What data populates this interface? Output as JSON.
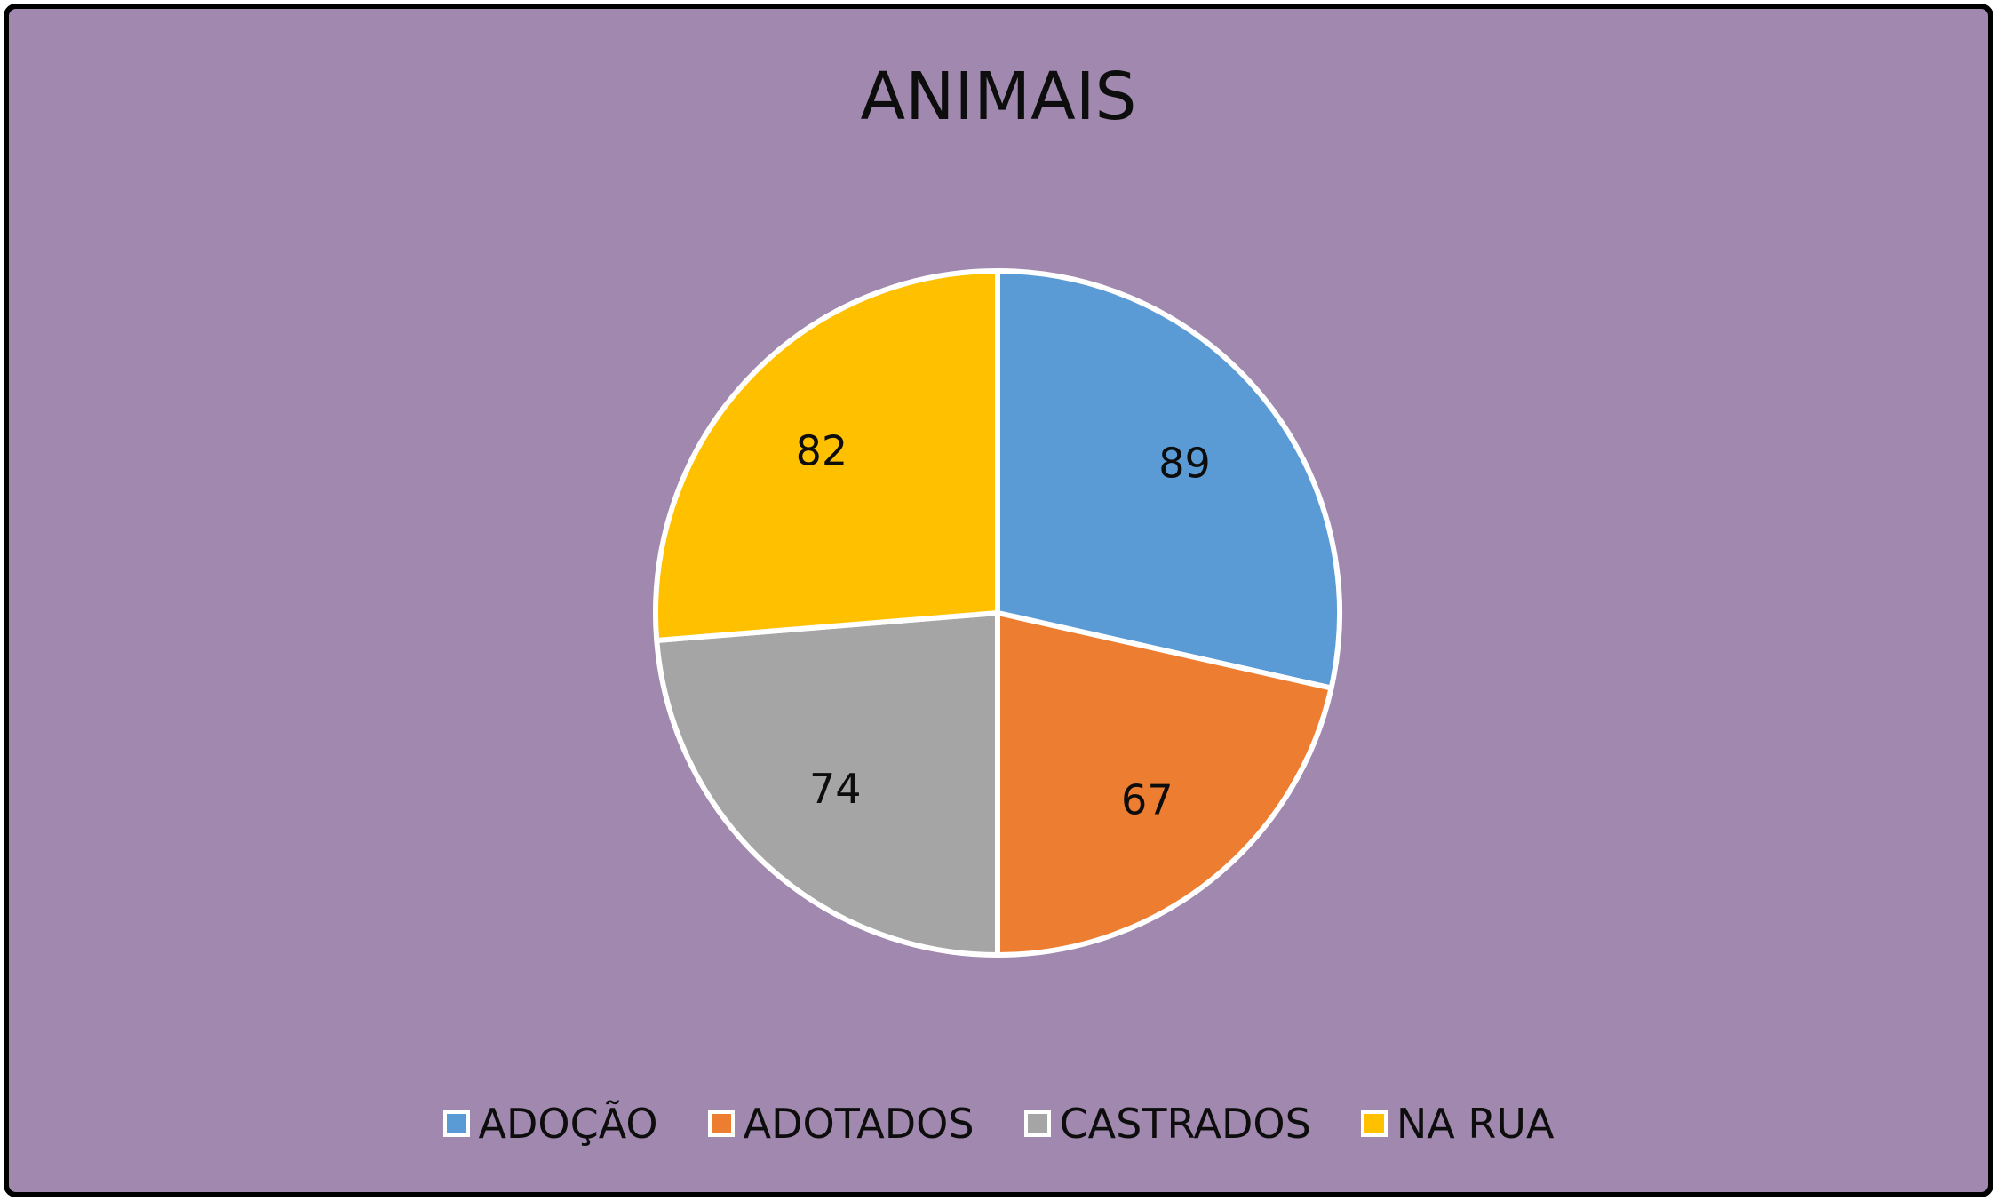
{
  "chart_data": {
    "type": "pie",
    "title": "ANIMAIS",
    "categories": [
      "ADOÇÃO",
      "ADOTADOS",
      "CASTRADOS",
      "NA RUA"
    ],
    "values": [
      89,
      67,
      74,
      82
    ],
    "colors": [
      "#5b9bd5",
      "#ed7d31",
      "#a5a5a5",
      "#ffc000"
    ],
    "legend_position": "bottom",
    "data_labels": true
  }
}
